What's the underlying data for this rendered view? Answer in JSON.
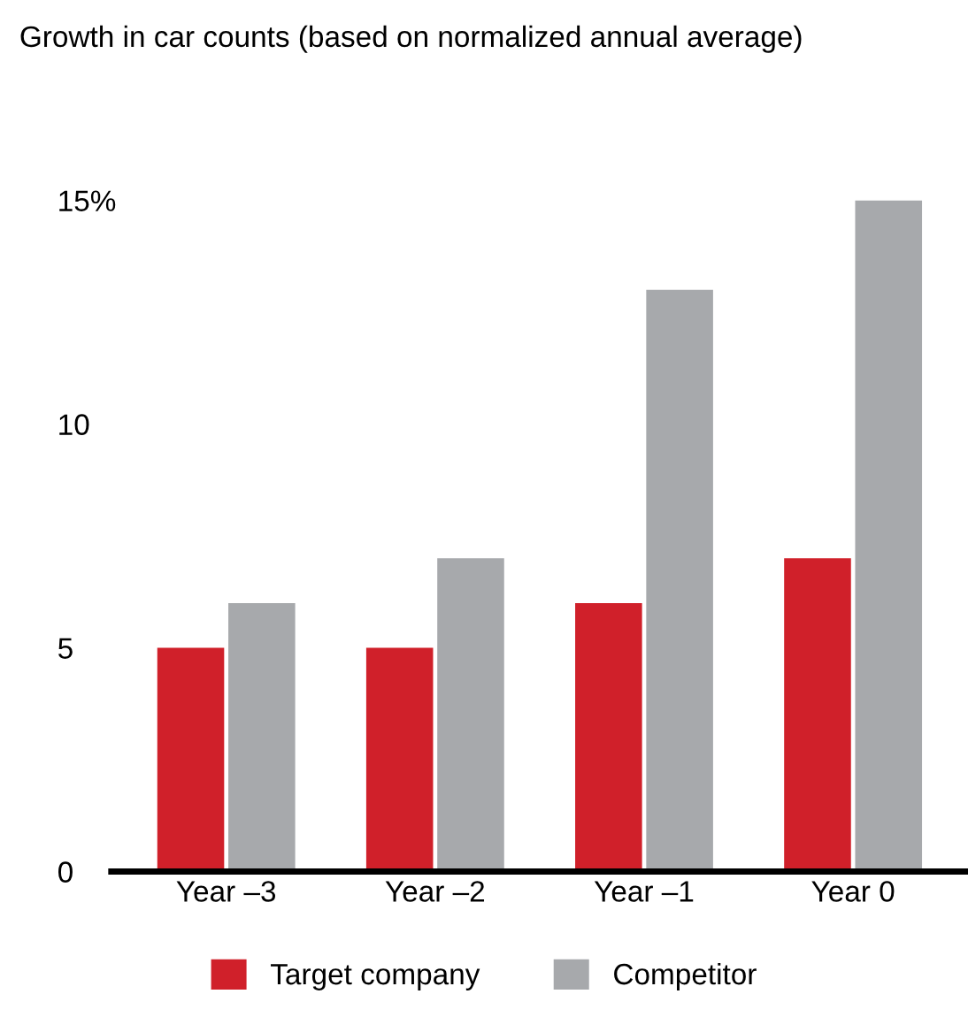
{
  "chart_data": {
    "type": "bar",
    "title": "Growth in car counts (based on normalized annual average)",
    "categories": [
      "Year –3",
      "Year –2",
      "Year –1",
      "Year 0"
    ],
    "series": [
      {
        "name": "Target company",
        "color": "#d0202a",
        "values": [
          5,
          5,
          6,
          7
        ]
      },
      {
        "name": "Competitor",
        "color": "#a7a9ac",
        "values": [
          6,
          7,
          13,
          15
        ]
      }
    ],
    "ylim": [
      0,
      15
    ],
    "yticks": [
      0,
      5,
      10,
      {
        "value": 15,
        "label": "15%"
      }
    ],
    "grid": false,
    "legend": "bottom"
  }
}
